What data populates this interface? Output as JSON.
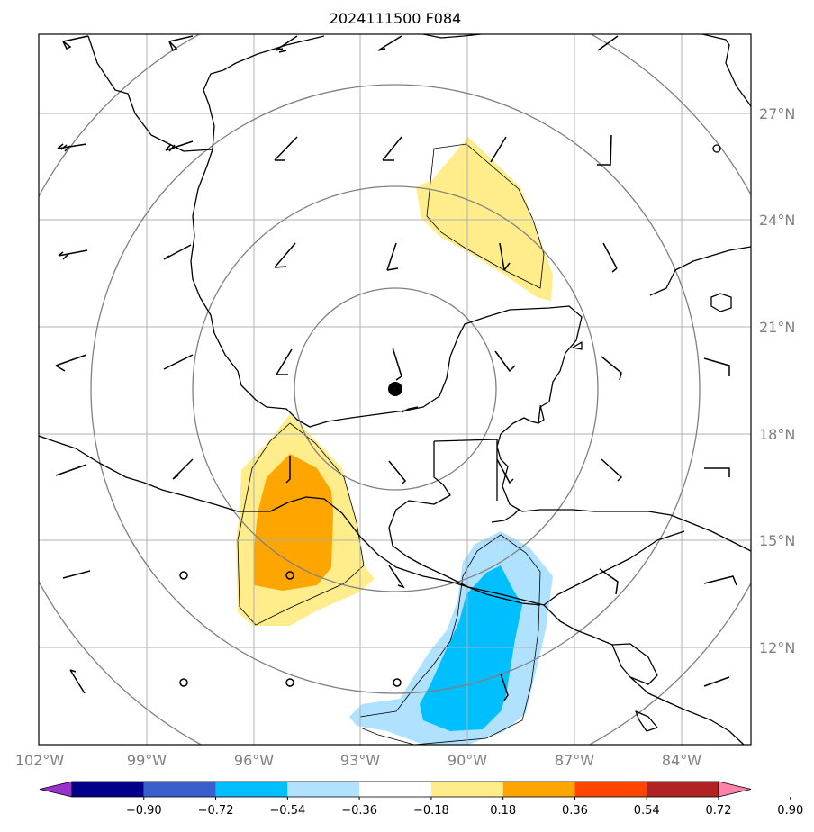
{
  "title": "2024111500 F084",
  "longitude_labels": [
    "102°W",
    "99°W",
    "96°W",
    "93°W",
    "90°W",
    "87°W",
    "84°W"
  ],
  "latitude_labels": [
    "27°N",
    "24°N",
    "21°N",
    "18°N",
    "15°N",
    "12°N"
  ],
  "colorbar": {
    "tick_labels": [
      "−0.90",
      "−0.72",
      "−0.54",
      "−0.36",
      "−0.18",
      "0.18",
      "0.36",
      "0.54",
      "0.72",
      "0.90"
    ],
    "colors": [
      "#9932cc",
      "#00008b",
      "#3a5fcd",
      "#00bfff",
      "#b0e2ff",
      "#ffffff",
      "#ffec8b",
      "#ffa500",
      "#ff4500",
      "#b22222",
      "#ff82ab"
    ]
  },
  "map_extent": {
    "lon_min": -102,
    "lon_max": -82,
    "lat_min": 9,
    "lat_max": 29
  },
  "storm_center": {
    "lon": -92,
    "lat": 19.2
  },
  "range_ring_color": "#808080",
  "grid_color": "#b0b0b0"
}
